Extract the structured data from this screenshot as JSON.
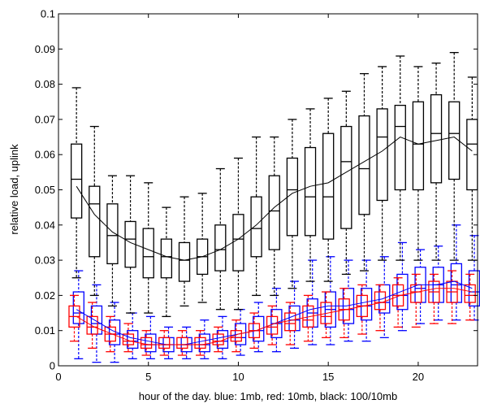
{
  "chart_data": {
    "type": "box",
    "title": "",
    "xlabel": "hour of the day. blue: 1mb, red: 10mb, black: 100/10mb",
    "ylabel": "relative load, uplink",
    "xlim": [
      0,
      23.3
    ],
    "ylim": [
      0,
      0.1
    ],
    "xticks": [
      0,
      5,
      10,
      15,
      20
    ],
    "yticks": [
      0,
      0.01,
      0.02,
      0.03,
      0.04,
      0.05,
      0.06,
      0.07,
      0.08,
      0.09,
      0.1
    ],
    "ytick_labels": [
      "0",
      "0.01",
      "0.02",
      "0.03",
      "0.04",
      "0.05",
      "0.06",
      "0.07",
      "0.08",
      "0.09",
      "0.1"
    ],
    "xtick_labels": [
      "0",
      "5",
      "10",
      "15",
      "20"
    ],
    "grid": false,
    "colors": {
      "blue": "#0000ff",
      "red": "#ff0000",
      "black": "#000000"
    },
    "series": [
      {
        "color": "#0000ff",
        "offset": 0.12,
        "hours": [
          1,
          2,
          3,
          4,
          5,
          6,
          7,
          8,
          9,
          10,
          11,
          12,
          13,
          14,
          15,
          16,
          17,
          18,
          19,
          20,
          21,
          22,
          23
        ],
        "whisker_low": [
          0.002,
          0.001,
          0.001,
          0.002,
          0.002,
          0.002,
          0.002,
          0.002,
          0.002,
          0.003,
          0.004,
          0.004,
          0.005,
          0.006,
          0.006,
          0.007,
          0.007,
          0.008,
          0.01,
          0.012,
          0.013,
          0.013,
          0.013
        ],
        "q1": [
          0.012,
          0.009,
          0.006,
          0.005,
          0.004,
          0.004,
          0.004,
          0.004,
          0.005,
          0.006,
          0.007,
          0.008,
          0.01,
          0.011,
          0.011,
          0.012,
          0.013,
          0.015,
          0.016,
          0.018,
          0.018,
          0.018,
          0.017
        ],
        "median": [
          0.015,
          0.012,
          0.009,
          0.007,
          0.006,
          0.006,
          0.006,
          0.006,
          0.007,
          0.008,
          0.01,
          0.012,
          0.013,
          0.015,
          0.016,
          0.016,
          0.017,
          0.018,
          0.02,
          0.022,
          0.023,
          0.023,
          0.021
        ],
        "q3": [
          0.021,
          0.017,
          0.013,
          0.01,
          0.009,
          0.008,
          0.008,
          0.009,
          0.01,
          0.012,
          0.014,
          0.016,
          0.017,
          0.019,
          0.021,
          0.022,
          0.022,
          0.023,
          0.026,
          0.028,
          0.028,
          0.029,
          0.027
        ],
        "whisker_high": [
          0.027,
          0.023,
          0.018,
          0.015,
          0.014,
          0.011,
          0.011,
          0.013,
          0.014,
          0.016,
          0.018,
          0.022,
          0.024,
          0.03,
          0.031,
          0.03,
          0.03,
          0.031,
          0.035,
          0.033,
          0.034,
          0.04,
          0.037
        ],
        "mean": [
          0.016,
          0.013,
          0.01,
          0.008,
          0.007,
          0.006,
          0.006,
          0.007,
          0.008,
          0.009,
          0.01,
          0.012,
          0.014,
          0.016,
          0.017,
          0.017,
          0.018,
          0.019,
          0.021,
          0.023,
          0.023,
          0.024,
          0.022
        ]
      },
      {
        "color": "#ff0000",
        "offset": -0.12,
        "hours": [
          1,
          2,
          3,
          4,
          5,
          6,
          7,
          8,
          9,
          10,
          11,
          12,
          13,
          14,
          15,
          16,
          17,
          18,
          19,
          20,
          21,
          22,
          23
        ],
        "whisker_low": [
          0.007,
          0.005,
          0.004,
          0.004,
          0.003,
          0.003,
          0.003,
          0.003,
          0.004,
          0.004,
          0.005,
          0.006,
          0.006,
          0.007,
          0.008,
          0.008,
          0.009,
          0.01,
          0.011,
          0.011,
          0.012,
          0.012,
          0.013
        ],
        "q1": [
          0.011,
          0.009,
          0.007,
          0.006,
          0.005,
          0.005,
          0.005,
          0.005,
          0.006,
          0.007,
          0.008,
          0.009,
          0.01,
          0.011,
          0.012,
          0.013,
          0.014,
          0.016,
          0.017,
          0.018,
          0.018,
          0.018,
          0.018
        ],
        "median": [
          0.014,
          0.011,
          0.009,
          0.007,
          0.006,
          0.006,
          0.006,
          0.006,
          0.007,
          0.008,
          0.01,
          0.011,
          0.012,
          0.013,
          0.014,
          0.016,
          0.017,
          0.018,
          0.02,
          0.021,
          0.021,
          0.021,
          0.02
        ],
        "q3": [
          0.017,
          0.014,
          0.011,
          0.009,
          0.008,
          0.008,
          0.008,
          0.008,
          0.009,
          0.01,
          0.012,
          0.014,
          0.015,
          0.017,
          0.018,
          0.019,
          0.02,
          0.021,
          0.023,
          0.023,
          0.024,
          0.024,
          0.023
        ],
        "whisker_high": [
          0.02,
          0.018,
          0.014,
          0.012,
          0.01,
          0.01,
          0.01,
          0.01,
          0.011,
          0.013,
          0.015,
          0.017,
          0.018,
          0.02,
          0.021,
          0.022,
          0.023,
          0.023,
          0.025,
          0.026,
          0.026,
          0.027,
          0.026
        ],
        "mean": [
          0.014,
          0.011,
          0.009,
          0.007,
          0.006,
          0.006,
          0.006,
          0.006,
          0.007,
          0.009,
          0.01,
          0.012,
          0.013,
          0.014,
          0.015,
          0.016,
          0.017,
          0.018,
          0.02,
          0.021,
          0.022,
          0.022,
          0.021
        ]
      },
      {
        "color": "#000000",
        "offset": 0,
        "hours": [
          1,
          2,
          3,
          4,
          5,
          6,
          7,
          8,
          9,
          10,
          11,
          12,
          13,
          14,
          15,
          16,
          17,
          18,
          19,
          20,
          21,
          22,
          23
        ],
        "whisker_low": [
          0.025,
          0.02,
          0.017,
          0.015,
          0.015,
          0.014,
          0.017,
          0.018,
          0.016,
          0.016,
          0.02,
          0.02,
          0.022,
          0.024,
          0.024,
          0.026,
          0.027,
          0.03,
          0.03,
          0.03,
          0.03,
          0.03,
          0.03
        ],
        "q1": [
          0.042,
          0.031,
          0.029,
          0.028,
          0.025,
          0.025,
          0.024,
          0.026,
          0.027,
          0.027,
          0.031,
          0.033,
          0.037,
          0.037,
          0.036,
          0.039,
          0.043,
          0.047,
          0.05,
          0.05,
          0.052,
          0.053,
          0.05
        ],
        "median": [
          0.053,
          0.046,
          0.037,
          0.036,
          0.031,
          0.031,
          0.03,
          0.031,
          0.033,
          0.036,
          0.039,
          0.044,
          0.05,
          0.048,
          0.048,
          0.058,
          0.056,
          0.065,
          0.068,
          0.063,
          0.066,
          0.066,
          0.063
        ],
        "q3": [
          0.063,
          0.051,
          0.046,
          0.041,
          0.039,
          0.036,
          0.035,
          0.036,
          0.04,
          0.043,
          0.048,
          0.054,
          0.059,
          0.062,
          0.066,
          0.068,
          0.071,
          0.073,
          0.074,
          0.075,
          0.077,
          0.075,
          0.07
        ],
        "whisker_high": [
          0.079,
          0.068,
          0.054,
          0.054,
          0.052,
          0.045,
          0.048,
          0.049,
          0.056,
          0.059,
          0.065,
          0.065,
          0.07,
          0.073,
          0.076,
          0.078,
          0.083,
          0.085,
          0.088,
          0.085,
          0.086,
          0.089,
          0.082
        ],
        "mean": [
          0.051,
          0.043,
          0.038,
          0.035,
          0.033,
          0.031,
          0.03,
          0.031,
          0.033,
          0.036,
          0.04,
          0.045,
          0.049,
          0.051,
          0.052,
          0.055,
          0.058,
          0.061,
          0.065,
          0.063,
          0.064,
          0.065,
          0.061
        ]
      }
    ]
  }
}
